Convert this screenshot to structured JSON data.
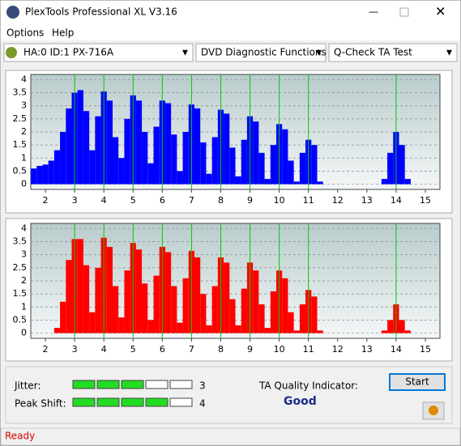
{
  "window": {
    "title": "PlexTools Professional XL V3.16"
  },
  "menu": [
    "Options",
    "Help"
  ],
  "toolbar": {
    "drive": "HA:0 ID:1  PX-716A",
    "function": "DVD Diagnostic Functions",
    "test": "Q-Check TA Test"
  },
  "chart_data": [
    {
      "type": "bar",
      "color": "#0000ff",
      "reference_lines": [
        3,
        4,
        5,
        6,
        7,
        8,
        9,
        10,
        11,
        14
      ],
      "reference_color": "#00cc00",
      "grid": true,
      "xlim": [
        1.5,
        15.5
      ],
      "xticks": [
        2,
        3,
        4,
        5,
        6,
        7,
        8,
        9,
        10,
        11,
        12,
        13,
        14,
        15
      ],
      "ylim": [
        -0.2,
        4.2
      ],
      "yticks": [
        0,
        0.5,
        1,
        1.5,
        2,
        2.5,
        3,
        3.5,
        4
      ],
      "x": [
        1.6,
        1.8,
        2.0,
        2.2,
        2.4,
        2.6,
        2.8,
        3.0,
        3.2,
        3.4,
        3.6,
        3.8,
        4.0,
        4.2,
        4.4,
        4.6,
        4.8,
        5.0,
        5.2,
        5.4,
        5.6,
        5.8,
        6.0,
        6.2,
        6.4,
        6.6,
        6.8,
        7.0,
        7.2,
        7.4,
        7.6,
        7.8,
        8.0,
        8.2,
        8.4,
        8.6,
        8.8,
        9.0,
        9.2,
        9.4,
        9.6,
        9.8,
        10.0,
        10.2,
        10.4,
        10.6,
        10.8,
        11.0,
        11.2,
        11.4,
        11.6,
        11.8,
        12.0,
        12.2,
        12.4,
        12.6,
        12.8,
        13.0,
        13.2,
        13.4,
        13.6,
        13.8,
        14.0,
        14.2,
        14.4,
        14.6
      ],
      "values": [
        0.6,
        0.7,
        0.75,
        0.9,
        1.3,
        2.0,
        2.9,
        3.5,
        3.6,
        2.8,
        1.3,
        2.6,
        3.55,
        3.2,
        1.8,
        1.0,
        2.5,
        3.4,
        3.2,
        2.0,
        0.8,
        2.2,
        3.2,
        3.1,
        1.9,
        0.5,
        2.0,
        3.05,
        2.9,
        1.6,
        0.4,
        1.8,
        2.85,
        2.7,
        1.4,
        0.3,
        1.7,
        2.6,
        2.4,
        1.2,
        0.2,
        1.5,
        2.3,
        2.1,
        0.9,
        0.1,
        1.2,
        1.7,
        1.5,
        0.1,
        0,
        0,
        0,
        0,
        0,
        0,
        0,
        0,
        0,
        0,
        0.2,
        1.2,
        2.0,
        1.5,
        0.2,
        0
      ]
    },
    {
      "type": "bar",
      "color": "#ff0000",
      "reference_lines": [
        3,
        4,
        5,
        6,
        7,
        8,
        9,
        10,
        11,
        14
      ],
      "reference_color": "#00cc00",
      "grid": true,
      "xlim": [
        1.5,
        15.5
      ],
      "xticks": [
        2,
        3,
        4,
        5,
        6,
        7,
        8,
        9,
        10,
        11,
        12,
        13,
        14,
        15
      ],
      "ylim": [
        -0.2,
        4.2
      ],
      "yticks": [
        0,
        0.5,
        1,
        1.5,
        2,
        2.5,
        3,
        3.5,
        4
      ],
      "x": [
        1.6,
        1.8,
        2.0,
        2.2,
        2.4,
        2.6,
        2.8,
        3.0,
        3.2,
        3.4,
        3.6,
        3.8,
        4.0,
        4.2,
        4.4,
        4.6,
        4.8,
        5.0,
        5.2,
        5.4,
        5.6,
        5.8,
        6.0,
        6.2,
        6.4,
        6.6,
        6.8,
        7.0,
        7.2,
        7.4,
        7.6,
        7.8,
        8.0,
        8.2,
        8.4,
        8.6,
        8.8,
        9.0,
        9.2,
        9.4,
        9.6,
        9.8,
        10.0,
        10.2,
        10.4,
        10.6,
        10.8,
        11.0,
        11.2,
        11.4,
        11.6,
        11.8,
        12.0,
        12.2,
        12.4,
        12.6,
        12.8,
        13.0,
        13.2,
        13.4,
        13.6,
        13.8,
        14.0,
        14.2,
        14.4,
        14.6
      ],
      "values": [
        0,
        0,
        0,
        0,
        0.2,
        1.2,
        2.8,
        3.6,
        3.6,
        2.6,
        0.8,
        2.5,
        3.65,
        3.3,
        1.8,
        0.6,
        2.4,
        3.45,
        3.2,
        1.9,
        0.5,
        2.2,
        3.3,
        3.1,
        1.8,
        0.4,
        2.1,
        3.15,
        2.9,
        1.5,
        0.3,
        1.8,
        2.9,
        2.7,
        1.3,
        0.3,
        1.7,
        2.7,
        2.4,
        1.1,
        0.2,
        1.6,
        2.4,
        2.1,
        0.8,
        0.1,
        1.1,
        1.65,
        1.4,
        0.1,
        0,
        0,
        0,
        0,
        0,
        0,
        0,
        0,
        0,
        0,
        0.1,
        0.5,
        1.1,
        0.5,
        0.1,
        0
      ]
    }
  ],
  "results": {
    "jitter": {
      "label": "Jitter:",
      "value": 3
    },
    "peak_shift": {
      "label": "Peak Shift:",
      "value": 4
    },
    "quality": {
      "label": "TA Quality Indicator:",
      "value": "Good"
    }
  },
  "button": "Start",
  "status": "Ready"
}
